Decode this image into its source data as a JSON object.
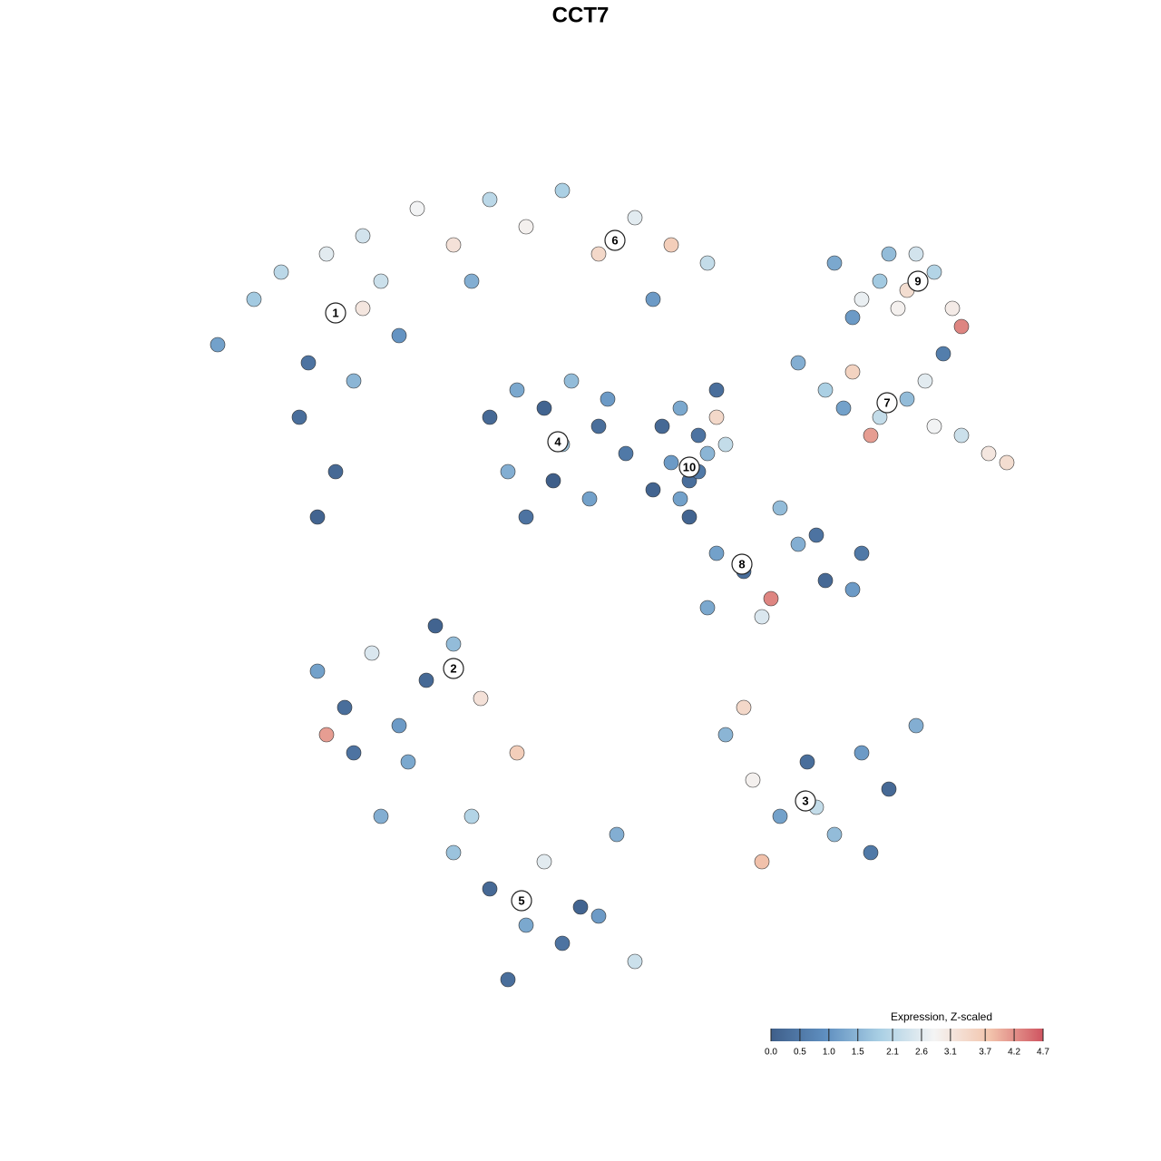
{
  "chart_data": {
    "type": "scatter",
    "title": "CCT7",
    "x": [
      -40,
      -36,
      -33,
      -30,
      -28,
      -25,
      -22,
      -20,
      -31,
      -27,
      -24,
      -29,
      -24,
      -18,
      -14,
      -10,
      -6,
      -2,
      2,
      6,
      10,
      14,
      -12,
      8,
      28,
      31,
      34,
      36,
      39,
      41,
      30,
      37,
      42,
      33,
      40,
      35,
      24,
      27,
      30,
      33,
      36,
      39,
      42,
      45,
      29,
      38,
      47,
      32,
      -10,
      -7,
      -4,
      -1,
      2,
      5,
      -8,
      -3,
      1,
      -6,
      3,
      -2,
      9,
      11,
      13,
      15,
      10,
      12,
      14,
      8,
      16,
      11,
      13,
      15,
      12,
      15,
      18,
      21,
      24,
      27,
      30,
      20,
      26,
      14,
      22,
      31,
      -29,
      -26,
      -23,
      -20,
      -17,
      -14,
      -11,
      -25,
      -19,
      -28,
      -16,
      -22,
      16,
      19,
      22,
      25,
      28,
      31,
      34,
      37,
      20,
      26,
      32,
      18,
      -14,
      -10,
      -6,
      -2,
      2,
      6,
      -12,
      -8,
      -4,
      0,
      4,
      -7
    ],
    "values": [
      26,
      31,
      34,
      24,
      36,
      22,
      33,
      27,
      18,
      12,
      30,
      7,
      38,
      41,
      37,
      42,
      39,
      43,
      36,
      40,
      37,
      35,
      33,
      31,
      35,
      31,
      36,
      32,
      34,
      30,
      29,
      36,
      28,
      33,
      25,
      30,
      24,
      21,
      23,
      18,
      20,
      17,
      16,
      14,
      19,
      22,
      13,
      16,
      18,
      21,
      19,
      22,
      17,
      14,
      12,
      11,
      9,
      7,
      20,
      15,
      17,
      19,
      16,
      18,
      13,
      11,
      14,
      10,
      15,
      9,
      12,
      21,
      7,
      3,
      1,
      -2,
      4,
      0,
      -1,
      -4,
      5,
      -3,
      8,
      3,
      -10,
      -14,
      -8,
      -16,
      -11,
      -7,
      -13,
      -19,
      -20,
      -17,
      -5,
      -26,
      -17,
      -22,
      -26,
      -20,
      -28,
      -19,
      -23,
      -16,
      -31,
      -25,
      -30,
      -14,
      -30,
      -34,
      -38,
      -40,
      -37,
      -42,
      -26,
      -44,
      -31,
      -36,
      -28,
      -19
    ],
    "expression": [
      1.2,
      1.8,
      2.1,
      0.4,
      2.6,
      1.5,
      2.3,
      1.0,
      0.3,
      0.2,
      3.1,
      0.1,
      2.4,
      2.8,
      3.2,
      2.1,
      2.9,
      1.9,
      3.4,
      2.6,
      3.6,
      2.2,
      1.4,
      1.1,
      1.3,
      2.7,
      1.6,
      3.3,
      2.0,
      3.0,
      1.1,
      2.4,
      4.3,
      1.8,
      0.6,
      2.9,
      1.4,
      1.9,
      3.5,
      2.2,
      1.6,
      2.8,
      2.3,
      3.1,
      1.2,
      2.6,
      3.3,
      4.1,
      0.2,
      1.3,
      0.1,
      1.6,
      0.3,
      0.5,
      1.4,
      0.0,
      1.2,
      0.4,
      1.1,
      1.7,
      0.2,
      1.3,
      0.4,
      3.4,
      1.1,
      0.3,
      1.5,
      0.1,
      2.2,
      1.2,
      0.5,
      0.3,
      0.1,
      1.2,
      0.3,
      4.3,
      1.4,
      0.2,
      1.1,
      2.5,
      0.4,
      1.3,
      1.6,
      0.5,
      1.2,
      0.3,
      2.5,
      1.1,
      0.2,
      1.6,
      3.2,
      0.4,
      1.3,
      4.1,
      0.1,
      1.4,
      1.5,
      2.9,
      1.2,
      0.3,
      1.6,
      1.1,
      0.2,
      1.4,
      3.8,
      2.2,
      0.5,
      3.4,
      1.7,
      0.2,
      1.3,
      0.4,
      1.1,
      2.3,
      2.0,
      0.3,
      2.6,
      0.1,
      1.4,
      3.6
    ],
    "xlim": [
      -64,
      64
    ],
    "ylim": [
      -64,
      64
    ],
    "clusters": [
      {
        "label": "1",
        "x": -27,
        "y": 29.5
      },
      {
        "label": "2",
        "x": -14,
        "y": -9.7
      },
      {
        "label": "3",
        "x": 24.8,
        "y": -24.3
      },
      {
        "label": "4",
        "x": -2.5,
        "y": 15.3
      },
      {
        "label": "5",
        "x": -6.5,
        "y": -35.3
      },
      {
        "label": "6",
        "x": 3.8,
        "y": 37.5
      },
      {
        "label": "7",
        "x": 33.8,
        "y": 19.6
      },
      {
        "label": "8",
        "x": 17.8,
        "y": 1.8
      },
      {
        "label": "9",
        "x": 37.2,
        "y": 33
      },
      {
        "label": "10",
        "x": 12,
        "y": 12.5
      }
    ],
    "colorbar": {
      "title": "Expression, Z-scaled",
      "clim": [
        0,
        4.7
      ],
      "colormap": [
        "#3f5f8a",
        "#5f8fc0",
        "#a9cfe4",
        "#f4f4f4",
        "#f3c6ae",
        "#cf5460"
      ],
      "ticks": [
        {
          "value": 0,
          "label": "0.0"
        },
        0.5,
        {
          "value": 1,
          "label": "1.0"
        },
        1.5,
        2.1,
        2.6,
        3.1,
        3.7,
        4.2,
        4.7
      ]
    }
  }
}
